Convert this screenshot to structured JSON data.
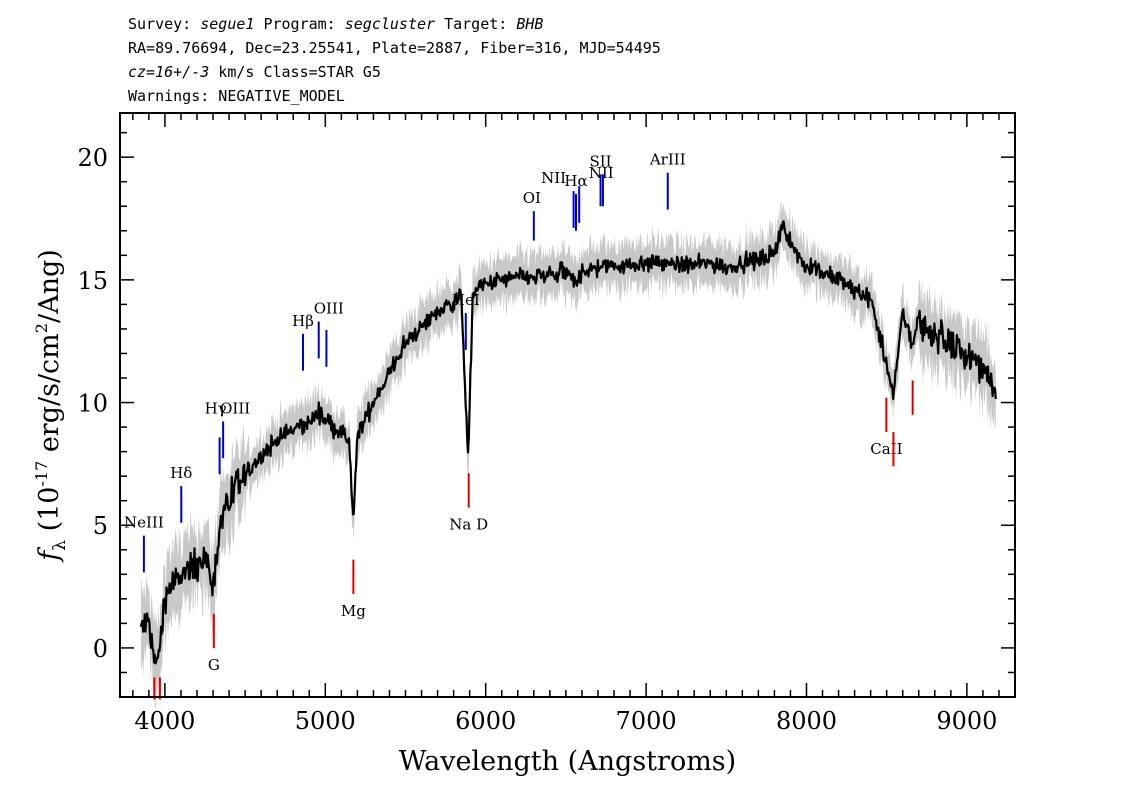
{
  "header": {
    "line1": {
      "survey_label": "Survey: ",
      "survey": "segue1",
      "program_label": " Program: ",
      "program": "segcluster",
      "target_label": " Target: ",
      "target": "BHB"
    },
    "line2": "RA=89.76694, Dec=23.25541, Plate=2887, Fiber=316, MJD=54495",
    "line3": {
      "cz": "cz=16+/-3",
      "rest": " km/s Class=STAR G5"
    },
    "line4": "Warnings: NEGATIVE_MODEL"
  },
  "chart_data": {
    "type": "line",
    "title": "",
    "xlabel": "Wavelength (Angstroms)",
    "ylabel": "f_λ (10^-17 erg/s/cm^2/Ang)",
    "xlim": [
      3720,
      9300
    ],
    "ylim": [
      -2,
      21.8
    ],
    "xticks": [
      4000,
      5000,
      6000,
      7000,
      8000,
      9000
    ],
    "yticks": [
      0,
      5,
      10,
      15,
      20
    ],
    "colors": {
      "spectrum": "#000000",
      "error_band": "#c8c8c8",
      "emission": "#0000cc",
      "absorption": "#dd0000"
    },
    "series": [
      {
        "x": [
          3850,
          3900,
          3934,
          3968,
          4000,
          4050,
          4102,
          4150,
          4200,
          4250,
          4300,
          4350,
          4400,
          4450,
          4500,
          4600,
          4700,
          4800,
          4861,
          4900,
          4959,
          5000,
          5050,
          5100,
          5150,
          5175,
          5200,
          5250,
          5300,
          5400,
          5500,
          5600,
          5700,
          5800,
          5850,
          5890,
          5920,
          6000,
          6100,
          6200,
          6300,
          6400,
          6500,
          6563,
          6600,
          6700,
          6800,
          6900,
          7000,
          7100,
          7200,
          7300,
          7400,
          7500,
          7600,
          7700,
          7800,
          7850,
          7880,
          7950,
          8000,
          8100,
          8200,
          8300,
          8400,
          8498,
          8542,
          8600,
          8662,
          8700,
          8800,
          8900,
          9000,
          9100,
          9150,
          9180
        ],
        "y": [
          0.8,
          1.0,
          -0.5,
          -0.3,
          2.2,
          2.6,
          2.9,
          3.1,
          3.4,
          3.7,
          2.5,
          5.4,
          5.9,
          6.5,
          7.0,
          7.8,
          8.5,
          8.9,
          9.1,
          9.2,
          9.6,
          9.3,
          9.0,
          8.8,
          8.3,
          5.0,
          8.6,
          9.4,
          10.0,
          11.2,
          12.4,
          13.1,
          13.7,
          14.1,
          14.3,
          7.6,
          14.5,
          14.8,
          15.0,
          15.1,
          15.1,
          15.2,
          15.3,
          14.8,
          15.4,
          15.5,
          15.6,
          15.6,
          15.7,
          15.7,
          15.6,
          15.6,
          15.7,
          15.5,
          15.7,
          15.8,
          16.1,
          17.4,
          16.6,
          16.0,
          15.6,
          15.3,
          15.0,
          14.6,
          14.2,
          11.6,
          10.2,
          13.7,
          12.3,
          13.4,
          12.8,
          12.3,
          11.9,
          11.4,
          11.0,
          10.1
        ]
      }
    ],
    "lines": [
      {
        "label": "NeIII",
        "type": "emission",
        "wave": 3869
      },
      {
        "label": "Hδ",
        "type": "emission",
        "wave": 4102
      },
      {
        "label": "Hγ",
        "type": "emission",
        "wave": 4341
      },
      {
        "label": "OIII",
        "type": "emission",
        "wave": 4363
      },
      {
        "label": "Hβ",
        "type": "emission",
        "wave": 4861
      },
      {
        "label": "OIII",
        "type": "emission",
        "wave": 4959
      },
      {
        "label": "",
        "type": "emission",
        "wave": 5007
      },
      {
        "label": "HeI",
        "type": "emission",
        "wave": 5876
      },
      {
        "label": "OI",
        "type": "emission",
        "wave": 6300
      },
      {
        "label": "NII",
        "type": "emission",
        "wave": 6548
      },
      {
        "label": "Hα",
        "type": "emission",
        "wave": 6563
      },
      {
        "label": "NII",
        "type": "emission",
        "wave": 6583
      },
      {
        "label": "SII",
        "type": "emission",
        "wave": 6716
      },
      {
        "label": "",
        "type": "emission",
        "wave": 6731
      },
      {
        "label": "ArIII",
        "type": "emission",
        "wave": 7135
      },
      {
        "label": "",
        "type": "absorption",
        "wave": 3934
      },
      {
        "label": "",
        "type": "absorption",
        "wave": 3969
      },
      {
        "label": "G",
        "type": "absorption",
        "wave": 4305
      },
      {
        "label": "Mg",
        "type": "absorption",
        "wave": 5175
      },
      {
        "label": "Na D",
        "type": "absorption",
        "wave": 5894
      },
      {
        "label": "CaII",
        "type": "absorption",
        "wave": 8498
      },
      {
        "label": "",
        "type": "absorption",
        "wave": 8542
      },
      {
        "label": "",
        "type": "absorption",
        "wave": 8662
      }
    ]
  }
}
